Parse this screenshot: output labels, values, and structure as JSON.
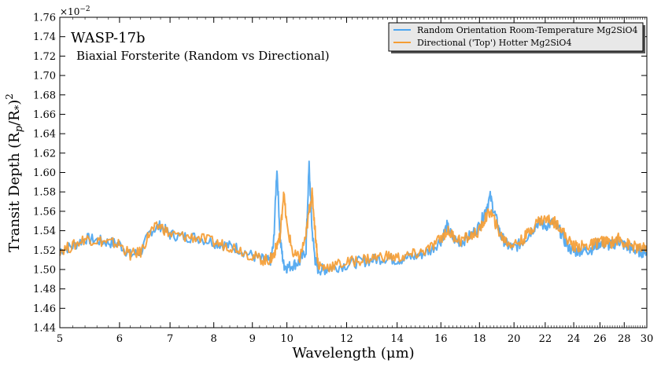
{
  "chart_data": {
    "type": "line",
    "title": "WASP-17b",
    "subtitle": "Biaxial Forsterite (Random vs Directional)",
    "xlabel": "Wavelength (μm)",
    "ylabel_main": "Transit Depth (R",
    "ylabel_sub1": "p",
    "ylabel_mid": "/R",
    "ylabel_sub2": "*",
    "ylabel_end": ")",
    "ylabel_sup": "2",
    "y_multiplier_base": "×10",
    "y_multiplier_exp": "−2",
    "x_scale": "log",
    "xlim": [
      5,
      30
    ],
    "ylim": [
      1.44,
      1.76
    ],
    "x_ticks": [
      5,
      6,
      7,
      8,
      9,
      10,
      12,
      14,
      16,
      18,
      20,
      22,
      24,
      26,
      28,
      30
    ],
    "x_tick_labels": [
      "5",
      "6",
      "7",
      "8",
      "9",
      "10",
      "12",
      "14",
      "16",
      "18",
      "20",
      "22",
      "24",
      "26",
      "28",
      "30"
    ],
    "y_ticks": [
      1.44,
      1.46,
      1.48,
      1.5,
      1.52,
      1.54,
      1.56,
      1.58,
      1.6,
      1.62,
      1.64,
      1.66,
      1.68,
      1.7,
      1.72,
      1.74,
      1.76
    ],
    "y_tick_labels": [
      "1.44",
      "1.46",
      "1.48",
      "1.50",
      "1.52",
      "1.54",
      "1.56",
      "1.58",
      "1.60",
      "1.62",
      "1.64",
      "1.66",
      "1.68",
      "1.70",
      "1.72",
      "1.74",
      "1.76"
    ],
    "grid": false,
    "legend_position": "top-right",
    "series": [
      {
        "name": "Random Orientation Room-Temperature Mg2SiO4",
        "color": "#4da6f0",
        "x": [
          5.0,
          5.2,
          5.4,
          5.6,
          5.8,
          6.0,
          6.2,
          6.4,
          6.6,
          6.8,
          7.0,
          7.3,
          7.6,
          8.0,
          8.3,
          8.6,
          9.0,
          9.3,
          9.5,
          9.6,
          9.7,
          9.8,
          9.9,
          10.0,
          10.2,
          10.4,
          10.6,
          10.7,
          10.8,
          10.9,
          11.0,
          11.2,
          11.5,
          12.0,
          12.5,
          13.0,
          13.5,
          14.0,
          14.5,
          15.0,
          15.5,
          16.0,
          16.3,
          16.6,
          17.0,
          17.5,
          18.0,
          18.3,
          18.6,
          18.9,
          19.2,
          19.6,
          20.0,
          20.5,
          21.0,
          21.5,
          22.0,
          22.5,
          23.0,
          23.5,
          24.0,
          24.5,
          25.0,
          25.5,
          26.0,
          26.5,
          27.0,
          27.5,
          28.0,
          28.5,
          29.0,
          29.5,
          30.0
        ],
        "y": [
          1.52,
          1.524,
          1.532,
          1.53,
          1.528,
          1.526,
          1.515,
          1.518,
          1.54,
          1.545,
          1.536,
          1.534,
          1.533,
          1.528,
          1.525,
          1.522,
          1.514,
          1.51,
          1.508,
          1.525,
          1.605,
          1.53,
          1.505,
          1.502,
          1.505,
          1.508,
          1.52,
          1.608,
          1.54,
          1.51,
          1.5,
          1.5,
          1.502,
          1.505,
          1.508,
          1.51,
          1.512,
          1.51,
          1.512,
          1.515,
          1.52,
          1.53,
          1.545,
          1.532,
          1.528,
          1.535,
          1.545,
          1.56,
          1.575,
          1.555,
          1.535,
          1.525,
          1.522,
          1.528,
          1.538,
          1.548,
          1.545,
          1.548,
          1.54,
          1.525,
          1.518,
          1.52,
          1.52,
          1.522,
          1.528,
          1.525,
          1.525,
          1.53,
          1.525,
          1.522,
          1.52,
          1.518,
          1.52
        ]
      },
      {
        "name": "Directional ('Top') Hotter Mg2SiO4",
        "color": "#f59d34",
        "x": [
          5.0,
          5.2,
          5.4,
          5.6,
          5.8,
          6.0,
          6.2,
          6.4,
          6.6,
          6.8,
          7.0,
          7.3,
          7.6,
          8.0,
          8.3,
          8.6,
          9.0,
          9.3,
          9.5,
          9.6,
          9.7,
          9.8,
          9.9,
          10.0,
          10.2,
          10.4,
          10.6,
          10.7,
          10.8,
          10.9,
          11.0,
          11.2,
          11.5,
          12.0,
          12.5,
          13.0,
          13.5,
          14.0,
          14.5,
          15.0,
          15.5,
          16.0,
          16.3,
          16.6,
          17.0,
          17.5,
          18.0,
          18.3,
          18.6,
          18.9,
          19.2,
          19.6,
          20.0,
          20.5,
          21.0,
          21.5,
          22.0,
          22.5,
          23.0,
          23.5,
          24.0,
          24.5,
          25.0,
          25.5,
          26.0,
          26.5,
          27.0,
          27.5,
          28.0,
          28.5,
          29.0,
          29.5,
          30.0
        ],
        "y": [
          1.52,
          1.524,
          1.532,
          1.53,
          1.528,
          1.526,
          1.515,
          1.518,
          1.54,
          1.545,
          1.536,
          1.534,
          1.533,
          1.528,
          1.525,
          1.522,
          1.514,
          1.51,
          1.51,
          1.515,
          1.525,
          1.535,
          1.58,
          1.545,
          1.515,
          1.512,
          1.535,
          1.56,
          1.578,
          1.54,
          1.505,
          1.502,
          1.504,
          1.507,
          1.51,
          1.512,
          1.514,
          1.512,
          1.514,
          1.517,
          1.522,
          1.532,
          1.54,
          1.535,
          1.53,
          1.534,
          1.54,
          1.552,
          1.56,
          1.548,
          1.535,
          1.528,
          1.526,
          1.53,
          1.54,
          1.55,
          1.552,
          1.55,
          1.545,
          1.532,
          1.524,
          1.524,
          1.524,
          1.526,
          1.53,
          1.528,
          1.528,
          1.532,
          1.528,
          1.525,
          1.523,
          1.521,
          1.522
        ]
      }
    ]
  }
}
